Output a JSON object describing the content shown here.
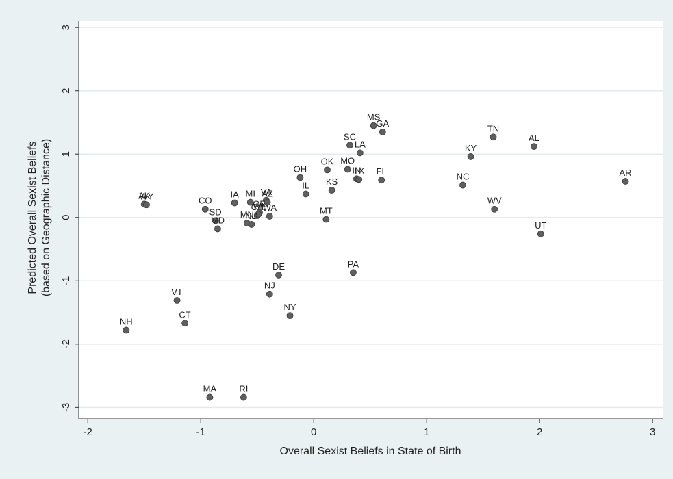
{
  "chart_data": {
    "type": "scatter",
    "x_label": "Overall Sexist Beliefs in State of Birth",
    "y_label": [
      "Predicted Overall Sexist Beliefs",
      "(based on Geographic Distance)"
    ],
    "xlim": [
      -2.08,
      3.09
    ],
    "ylim": [
      -3.18,
      3.11
    ],
    "xticks": [
      -2,
      -1,
      0,
      1,
      2,
      3
    ],
    "yticks": [
      -3,
      -2,
      -1,
      0,
      1,
      2,
      3
    ],
    "grid": true,
    "color": "#5f5f5f",
    "labels": [
      "MS",
      "GA",
      "SC",
      "LA",
      "TN",
      "AL",
      "KY",
      "OK",
      "MO",
      "IN",
      "TX",
      "FL",
      "NC",
      "AR",
      "OH",
      "IL",
      "KS",
      "WV",
      "UT",
      "MT",
      "AK",
      "WY",
      "CO",
      "IA",
      "MI",
      "OR",
      "VA",
      "AZ",
      "CA",
      "WI",
      "WA",
      "MN",
      "ND",
      "SD",
      "MD",
      "DE",
      "PA",
      "NJ",
      "NY",
      "VT",
      "CT",
      "NH",
      "MA",
      "RI"
    ],
    "x": [
      0.53,
      0.61,
      0.32,
      0.41,
      1.59,
      1.95,
      1.39,
      0.12,
      0.3,
      0.38,
      0.4,
      0.6,
      1.32,
      2.76,
      -0.12,
      -0.07,
      0.16,
      1.6,
      2.01,
      0.11,
      -1.5,
      -1.48,
      -0.96,
      -0.7,
      -0.56,
      -0.48,
      -0.42,
      -0.41,
      -0.5,
      -0.49,
      -0.39,
      -0.59,
      -0.55,
      -0.87,
      -0.85,
      -0.31,
      0.35,
      -0.39,
      -0.21,
      -1.21,
      -1.14,
      -1.66,
      -0.92,
      -0.62
    ],
    "values": [
      1.45,
      1.35,
      1.14,
      1.02,
      1.27,
      1.12,
      0.96,
      0.75,
      0.76,
      0.61,
      0.6,
      0.59,
      0.51,
      0.57,
      0.63,
      0.37,
      0.43,
      0.13,
      -0.26,
      -0.03,
      0.21,
      0.2,
      0.13,
      0.23,
      0.24,
      0.08,
      0.27,
      0.24,
      0.03,
      0.05,
      0.02,
      -0.09,
      -0.11,
      -0.05,
      -0.18,
      -0.91,
      -0.87,
      -1.21,
      -1.55,
      -1.31,
      -1.67,
      -1.78,
      -2.84,
      -2.84
    ]
  }
}
